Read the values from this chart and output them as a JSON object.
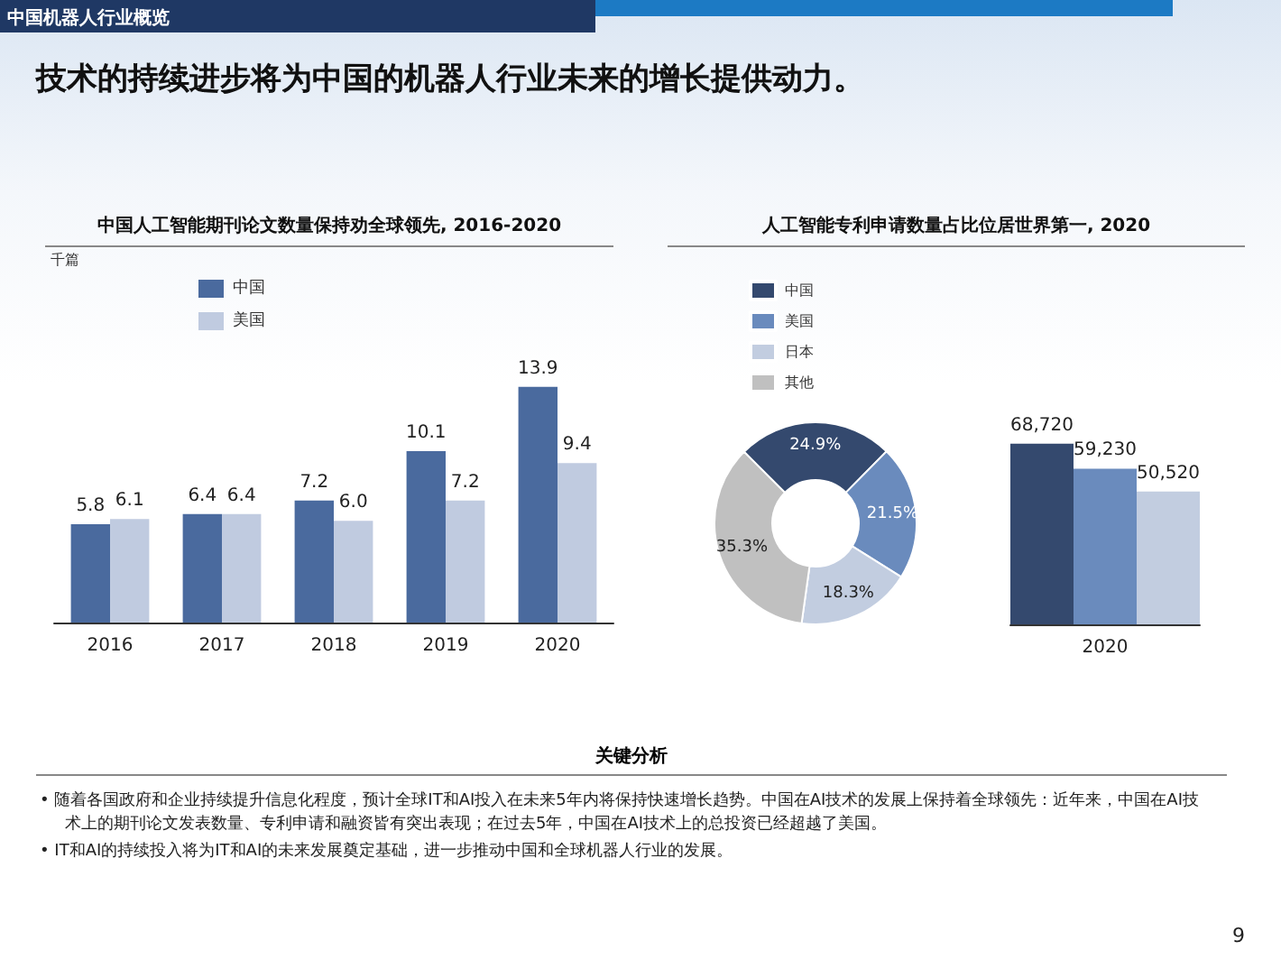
{
  "chart_data": [
    {
      "type": "other",
      "title": "技术的持续进步将为中国的机器人行业未来的增长提供动力。",
      "annotations": [
        "中国机器人行业概览",
        "关键分析",
        "• 随着各国政府和企业持续提升信息化程度，预计全球IT和AI投入在未来5年内将保持快速增长趋势。中国在AI技术的发展上保持着全球领先：近年来，中国在AI技术上的期刊论文发表数量、专利申请和融资皆有突出表现；在过去5年，中国在AI技术上的总投资已经超越了美国。",
        "• IT和AI的持续投入将为IT和AI的未来发展奠定基础，进一步推动中国和全球机器人行业的发展。",
        "9"
      ]
    },
    {
      "type": "bar",
      "title": "中国人工智能期刊论文数量保持劝全球领先, 2016-2020",
      "ylabel": "千篇",
      "categories": [
        "2016",
        "2017",
        "2018",
        "2019",
        "2020"
      ],
      "series": [
        {
          "name": "中国",
          "color": "#4a6a9e",
          "values": [
            5.8,
            6.4,
            7.2,
            10.1,
            13.9
          ]
        },
        {
          "name": "美国",
          "color": "#c0cbe0",
          "values": [
            6.1,
            6.4,
            6.0,
            7.2,
            9.4
          ],
          "value_labels": [
            "6.1",
            "6.4",
            "6.0",
            "7.2",
            "9.4"
          ]
        }
      ],
      "legend": "top left",
      "data_labels": true
    },
    {
      "type": "donut",
      "title": "人工智能专利申请数量占比位居世界第一, 2020",
      "categories": [
        "中国",
        "美国",
        "日本",
        "其他"
      ],
      "values": [
        24.9,
        21.5,
        18.3,
        35.3
      ],
      "value_labels": [
        "24.9%",
        "21.5%",
        "18.3%",
        "35.3%"
      ],
      "colors": [
        "#34496e",
        "#6a8bbd",
        "#c2cde0",
        "#c0c0c0"
      ],
      "legend": "top left"
    },
    {
      "type": "bar",
      "categories": [
        null,
        "2020",
        null
      ],
      "values": [
        68720,
        59230,
        50520
      ],
      "colors": [
        "#34496e",
        "#6a8bbd",
        "#c2cde0"
      ],
      "value_labels": [
        "68,720",
        "59,230",
        "50,520"
      ]
    }
  ]
}
